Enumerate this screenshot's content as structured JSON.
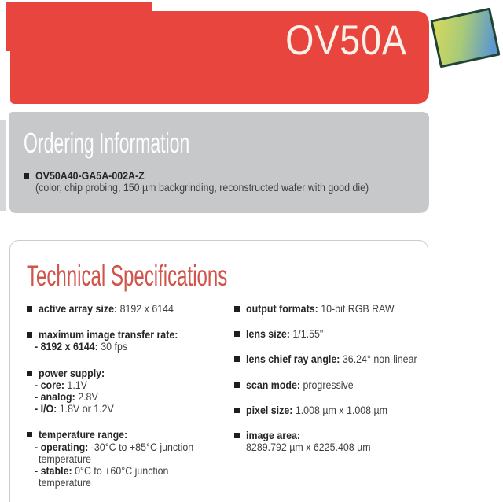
{
  "header": {
    "product_name": "OV50A",
    "banner_color": "#e8453e",
    "text_color": "#f8f1e8",
    "chip_icon": "image-sensor-chip-icon",
    "chip_border_color": "#1f4233",
    "chip_gradient_start": "#d2d85e",
    "chip_gradient_end": "#5b98cf"
  },
  "ordering": {
    "title": "Ordering Information",
    "background_color": "#c7c8ca",
    "title_color": "#fdfdfd",
    "items": [
      {
        "part_number": "OV50A40-GA5A-002A-Z",
        "description": "(color, chip probing, 150 µm backgrinding, reconstructed wafer with good die)"
      }
    ]
  },
  "specs": {
    "title": "Technical Specifications",
    "title_color": "#d0544a",
    "left_column": [
      {
        "lines": [
          {
            "segs": [
              {
                "text": "active array size:",
                "bold": true
              },
              {
                "text": " 8192 x 6144"
              }
            ]
          }
        ]
      },
      {
        "lines": [
          {
            "segs": [
              {
                "text": "maximum image transfer rate:",
                "bold": true
              }
            ]
          },
          {
            "sub": true,
            "segs": [
              {
                "text": "- 8192 x 6144:",
                "bold": true
              },
              {
                "text": " 30 fps"
              }
            ]
          }
        ]
      },
      {
        "lines": [
          {
            "segs": [
              {
                "text": "power supply:",
                "bold": true
              }
            ]
          },
          {
            "sub": true,
            "segs": [
              {
                "text": "- core:",
                "bold": true
              },
              {
                "text": " 1.1V"
              }
            ]
          },
          {
            "sub": true,
            "segs": [
              {
                "text": "- analog:",
                "bold": true
              },
              {
                "text": " 2.8V"
              }
            ]
          },
          {
            "sub": true,
            "segs": [
              {
                "text": "- I/O:",
                "bold": true
              },
              {
                "text": " 1.8V or 1.2V"
              }
            ]
          }
        ]
      },
      {
        "lines": [
          {
            "segs": [
              {
                "text": "temperature range:",
                "bold": true
              }
            ]
          },
          {
            "sub": true,
            "segs": [
              {
                "text": "- operating:",
                "bold": true
              },
              {
                "text": " -30°C to +85°C junction"
              }
            ]
          },
          {
            "segs": [
              {
                "text": "temperature"
              }
            ]
          },
          {
            "sub": true,
            "segs": [
              {
                "text": "- stable:",
                "bold": true
              },
              {
                "text": " 0°C to +60°C junction"
              }
            ]
          },
          {
            "segs": [
              {
                "text": "temperature"
              }
            ]
          }
        ]
      }
    ],
    "right_column": [
      {
        "lines": [
          {
            "segs": [
              {
                "text": "output formats:",
                "bold": true
              },
              {
                "text": " 10-bit RGB RAW"
              }
            ]
          }
        ]
      },
      {
        "lines": [
          {
            "segs": [
              {
                "text": "lens size:",
                "bold": true
              },
              {
                "text": " 1/1.55\""
              }
            ]
          }
        ]
      },
      {
        "lines": [
          {
            "segs": [
              {
                "text": "lens chief ray angle:",
                "bold": true
              },
              {
                "text": " 36.24° non-linear"
              }
            ]
          }
        ]
      },
      {
        "lines": [
          {
            "segs": [
              {
                "text": "scan mode:",
                "bold": true
              },
              {
                "text": " progressive"
              }
            ]
          }
        ]
      },
      {
        "lines": [
          {
            "segs": [
              {
                "text": "pixel size:",
                "bold": true
              },
              {
                "text": " 1.008 µm x 1.008 µm"
              }
            ]
          }
        ]
      },
      {
        "lines": [
          {
            "segs": [
              {
                "text": "image area:",
                "bold": true
              }
            ]
          },
          {
            "segs": [
              {
                "text": "8289.792 µm x 6225.408 µm"
              }
            ]
          }
        ]
      }
    ]
  }
}
